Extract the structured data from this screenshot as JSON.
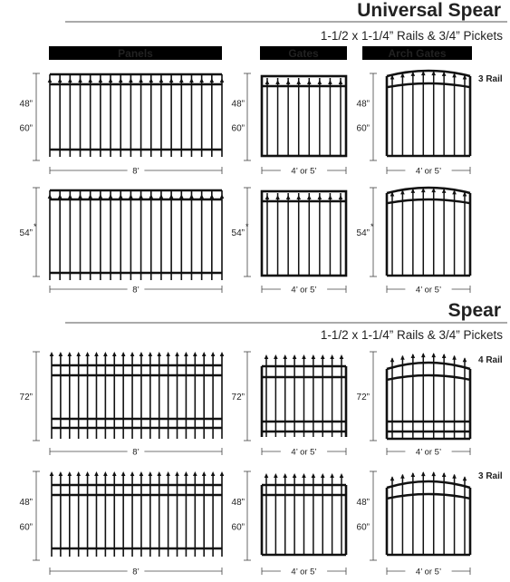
{
  "sections": [
    {
      "title": "Universal Spear",
      "subtitle": "1-1/2 x 1-1/4” Rails & 3/4” Pickets",
      "column_headers": [
        "Panels",
        "Gates",
        "Arch Gates"
      ],
      "rows": [
        {
          "height_labels": [
            "48”",
            "60”"
          ],
          "panel_width": "8’",
          "gate_width": "4’ or 5’",
          "arch_width": "4’ or 5’",
          "rail_note": "3 Rail"
        },
        {
          "height_labels": [
            "54”"
          ],
          "height_marker": "*",
          "panel_width": "8’",
          "gate_width": "4’ or 5’",
          "arch_width": "4’ or 5’",
          "rail_note": ""
        }
      ]
    },
    {
      "title": "Spear",
      "subtitle": "1-1/2 x 1-1/4” Rails & 3/4” Pickets",
      "rows": [
        {
          "height_labels": [
            "72”"
          ],
          "panel_width": "8’",
          "gate_width": "4’ or 5’",
          "arch_width": "4’ or 5’",
          "rail_note": "4 Rail"
        },
        {
          "height_labels": [
            "48”",
            "60”"
          ],
          "panel_width": "8’",
          "gate_width": "4’ or 5’",
          "arch_width": "4’ or 5’",
          "rail_note": "3 Rail"
        }
      ]
    }
  ],
  "colors": {
    "title": "#1f3f7a",
    "ink": "#111111",
    "header_bar": "#000000",
    "header_text": "#ffffff",
    "rule": "#555555"
  }
}
